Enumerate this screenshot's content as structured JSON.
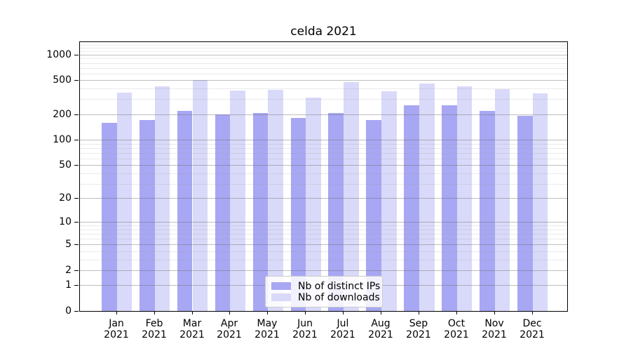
{
  "title": "celda 2021",
  "chart_data": {
    "type": "bar",
    "title": "celda 2021",
    "categories": [
      "Jan 2021",
      "Feb 2021",
      "Mar 2021",
      "Apr 2021",
      "May 2021",
      "Jun 2021",
      "Jul 2021",
      "Aug 2021",
      "Sep 2021",
      "Oct 2021",
      "Nov 2021",
      "Dec 2021"
    ],
    "series": [
      {
        "name": "Nb of distinct IPs",
        "color": "#a7a7f3",
        "values": [
          157,
          169,
          219,
          199,
          207,
          181,
          208,
          171,
          255,
          256,
          217,
          192
        ]
      },
      {
        "name": "Nb of downloads",
        "color": "#d9d9f9",
        "values": [
          358,
          426,
          500,
          380,
          383,
          314,
          474,
          371,
          462,
          426,
          393,
          353
        ]
      }
    ],
    "xlabel": "",
    "ylabel": "",
    "yscale": "log1p",
    "ylim": [
      0,
      1400
    ],
    "yticks": [
      0,
      1,
      2,
      5,
      10,
      20,
      50,
      100,
      200,
      500,
      1000
    ],
    "yticks_minor": [
      3,
      4,
      6,
      7,
      8,
      9,
      30,
      40,
      60,
      70,
      80,
      90,
      300,
      400,
      600,
      700,
      800,
      900,
      1100,
      1200,
      1300
    ],
    "grid": true,
    "legend_position": "lower center"
  }
}
